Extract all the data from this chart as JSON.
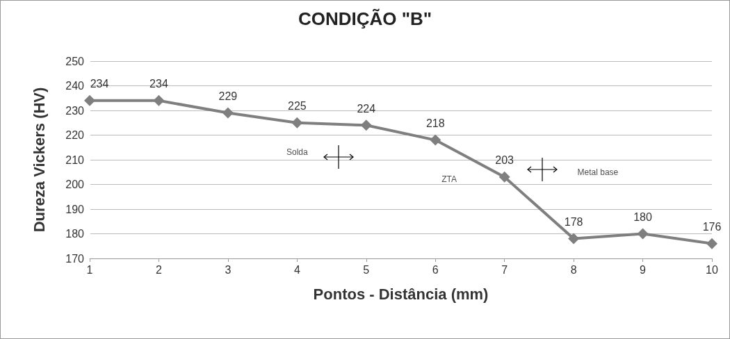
{
  "chart_data": {
    "type": "line",
    "title": "CONDIÇÃO \"B\"",
    "xlabel": "Pontos - Distância (mm)",
    "ylabel": "Dureza Vickers (HV)",
    "x": [
      1,
      2,
      3,
      4,
      5,
      6,
      7,
      8,
      9,
      10
    ],
    "series": [
      {
        "color": "#7f7f7f",
        "values": [
          234,
          234,
          229,
          225,
          224,
          218,
          203,
          178,
          180,
          176
        ]
      }
    ],
    "xlim": [
      1,
      10
    ],
    "xticks": [
      1,
      2,
      3,
      4,
      5,
      6,
      7,
      8,
      9,
      10
    ],
    "ylim": [
      170,
      250
    ],
    "yticks": [
      170,
      180,
      190,
      200,
      210,
      220,
      230,
      240,
      250
    ],
    "grid": "y",
    "marker": "diamond",
    "line_style": "solid",
    "data_labels": true,
    "annotations": [
      "Solda",
      "ZTA",
      "Metal base"
    ]
  }
}
